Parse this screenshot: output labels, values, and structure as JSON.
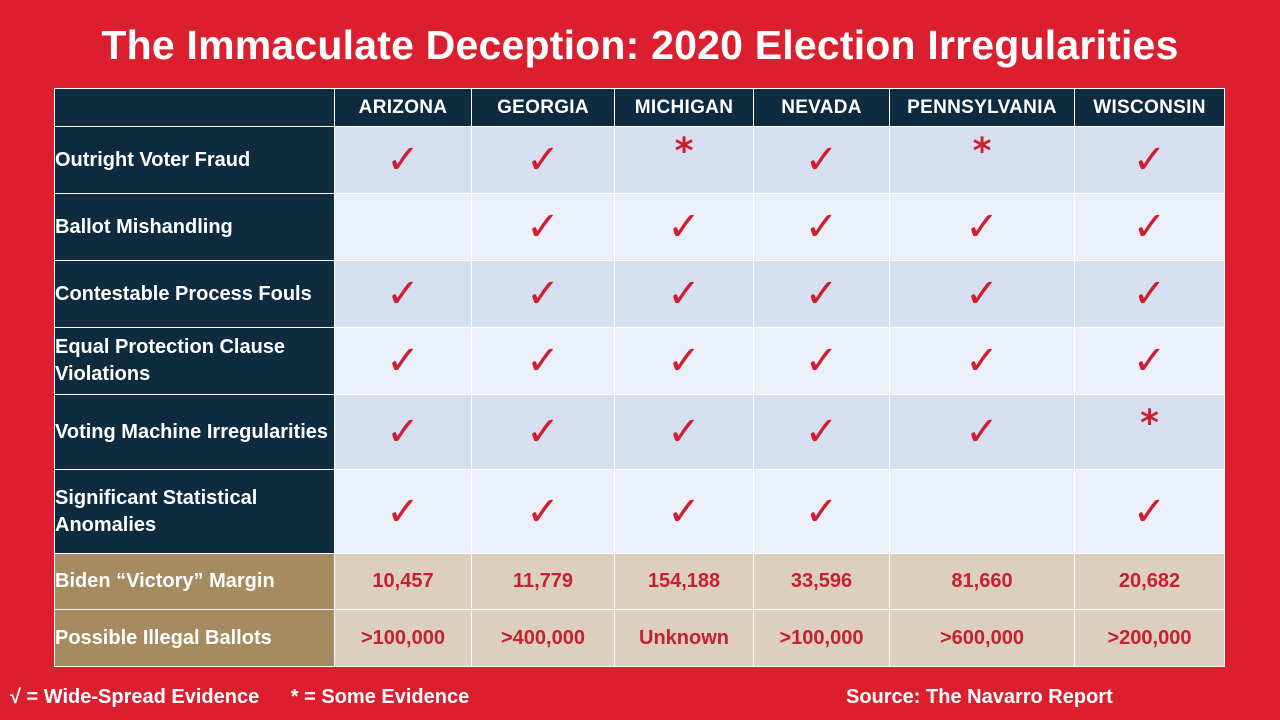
{
  "title": "The Immaculate Deception: 2020 Election Irregularities",
  "columns": [
    "ARIZONA",
    "GEORGIA",
    "MICHIGAN",
    "NEVADA",
    "PENNSYLVANIA",
    "WISCONSIN"
  ],
  "rows": [
    {
      "label": "Outright Voter Fraud",
      "cells": [
        "check",
        "check",
        "star",
        "check",
        "star",
        "check"
      ]
    },
    {
      "label": "Ballot Mishandling",
      "cells": [
        "",
        "check",
        "check",
        "check",
        "check",
        "check"
      ]
    },
    {
      "label": "Contestable Process Fouls",
      "cells": [
        "check",
        "check",
        "check",
        "check",
        "check",
        "check"
      ]
    },
    {
      "label": "Equal Protection Clause Violations",
      "cells": [
        "check",
        "check",
        "check",
        "check",
        "check",
        "check"
      ]
    },
    {
      "label": "Voting Machine Irregularities",
      "cells": [
        "check",
        "check",
        "check",
        "check",
        "check",
        "star"
      ]
    },
    {
      "label": "Significant Statistical Anomalies",
      "cells": [
        "check",
        "check",
        "check",
        "check",
        "",
        "check"
      ]
    }
  ],
  "margin_row": {
    "label": "Biden “Victory” Margin",
    "values": [
      "10,457",
      "11,779",
      "154,188",
      "33,596",
      "81,660",
      "20,682"
    ]
  },
  "ballots_row": {
    "label": "Possible Illegal Ballots",
    "values": [
      ">100,000",
      ">400,000",
      "Unknown",
      ">100,000",
      ">600,000",
      ">200,000"
    ]
  },
  "legend": {
    "check": "√ = Wide-Spread Evidence",
    "star": "* = Some Evidence"
  },
  "source": "Source: The Navarro Report",
  "colors": {
    "background": "#dc1f2e",
    "header": "#0f2b40",
    "mark": "#d01e30",
    "tan_label": "#a58b5f",
    "tan_cell": "#dccfbe"
  }
}
